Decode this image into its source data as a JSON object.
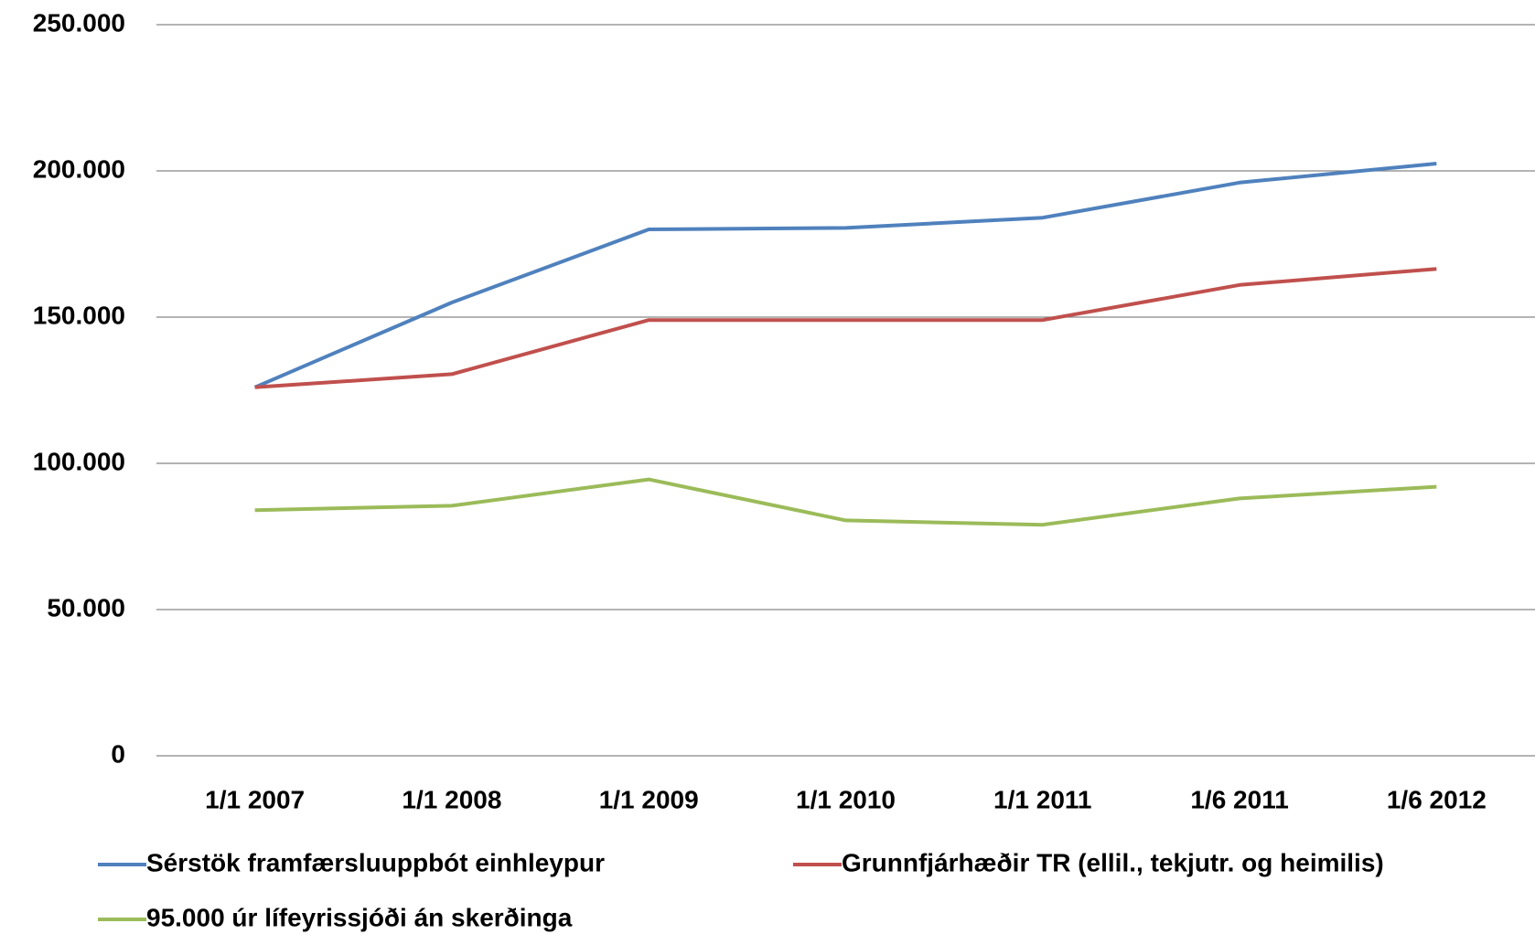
{
  "chart_data": {
    "type": "line",
    "categories": [
      "1/1 2007",
      "1/1 2008",
      "1/1 2009",
      "1/1 2010",
      "1/1 2011",
      "1/6 2011",
      "1/6 2012"
    ],
    "series": [
      {
        "name": "Sérstök framfærsluuppbót einhleypur",
        "color": "#4f81bd",
        "values": [
          126000,
          155000,
          180000,
          180500,
          184000,
          196000,
          202500
        ]
      },
      {
        "name": "Grunnfjárhæðir TR (ellil., tekjutr. og heimilis)",
        "color": "#c0504d",
        "values": [
          126000,
          130500,
          149000,
          149000,
          149000,
          161000,
          166500
        ]
      },
      {
        "name": "95.000 úr lífeyrissjóði án skerðinga",
        "color": "#9bbb59",
        "values": [
          84000,
          85500,
          94500,
          80500,
          79000,
          88000,
          92000
        ]
      }
    ],
    "ylim": [
      0,
      250000
    ],
    "yticks": [
      0,
      {
        "value": 50000,
        "label": "50.000"
      },
      {
        "value": 100000,
        "label": "100.000"
      },
      {
        "value": 150000,
        "label": "150.000"
      },
      {
        "value": 200000,
        "label": "200.000"
      },
      {
        "value": 250000,
        "label": "250.000"
      }
    ],
    "grid": true
  }
}
